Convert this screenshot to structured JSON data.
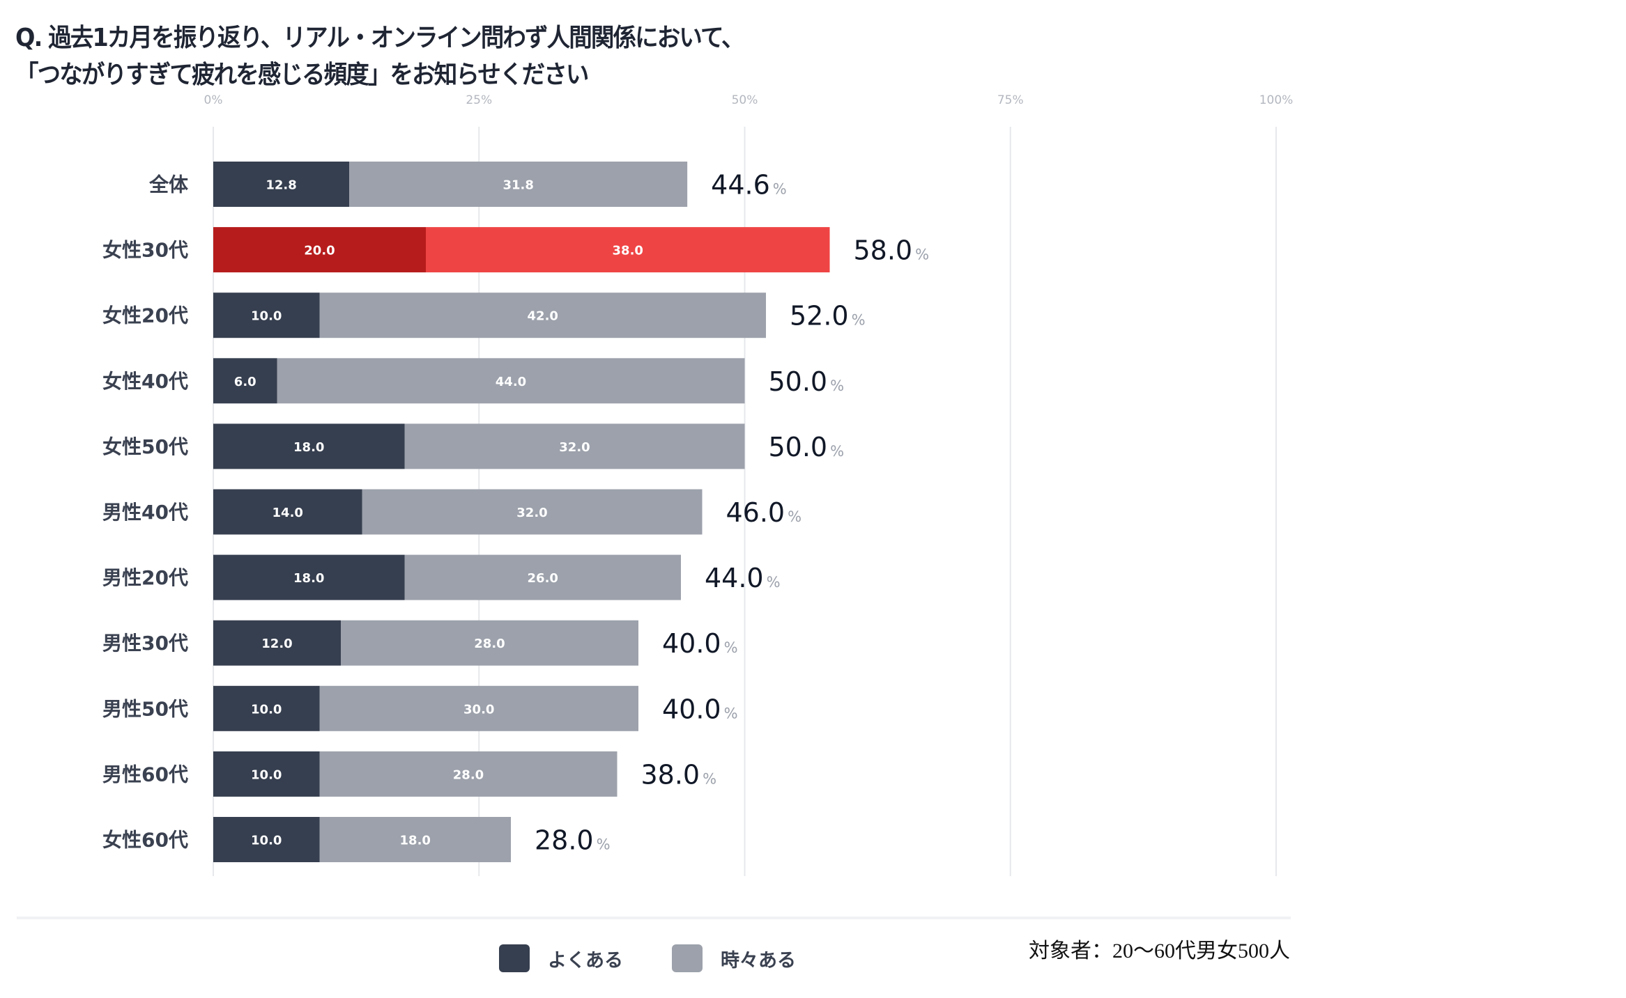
{
  "title": {
    "line1": "Q. 過去1カ月を振り返り、リアル・オンライン問わず人間関係において、",
    "line2": "「つながりすぎて疲れを感じる頻度」をお知らせください"
  },
  "colors": {
    "often": "#363f4f",
    "sometimes": "#9ca1ab",
    "highlight_often": "#b71c1c",
    "highlight_sometimes": "#ef4444",
    "highlight_text": "#d32f2f",
    "gridline": "#e6e8eb"
  },
  "legend": {
    "items": [
      {
        "label": "よくある",
        "color": "#363f4f"
      },
      {
        "label": "時々ある",
        "color": "#9ca1ab"
      }
    ]
  },
  "note": "対象者：20～60代男女500人",
  "chart_data": {
    "type": "bar",
    "orientation": "horizontal",
    "stacked": true,
    "title": "Q. 過去1カ月を振り返り、リアル・オンライン問わず人間関係において、「つながりすぎて疲れを感じる頻度」をお知らせください",
    "xlabel": "",
    "ylabel": "",
    "xlim": [
      0,
      100
    ],
    "x_ticks": [
      "0%",
      "25%",
      "50%",
      "75%",
      "100%"
    ],
    "x_tick_values": [
      0,
      25,
      50,
      75,
      100
    ],
    "grid": true,
    "legend_position": "bottom",
    "categories": [
      "全体",
      "女性30代",
      "女性20代",
      "女性40代",
      "女性50代",
      "男性40代",
      "男性20代",
      "男性30代",
      "男性50代",
      "男性60代",
      "女性60代"
    ],
    "highlight_category": "女性30代",
    "series": [
      {
        "name": "よくある",
        "values": [
          12.8,
          20.0,
          10.0,
          6.0,
          18.0,
          14.0,
          18.0,
          12.0,
          10.0,
          10.0,
          10.0
        ]
      },
      {
        "name": "時々ある",
        "values": [
          31.8,
          38.0,
          42.0,
          44.0,
          32.0,
          32.0,
          26.0,
          28.0,
          30.0,
          28.0,
          18.0
        ]
      }
    ],
    "totals": [
      44.6,
      58.0,
      52.0,
      50.0,
      50.0,
      46.0,
      44.0,
      40.0,
      40.0,
      38.0,
      28.0
    ],
    "total_suffix": "%"
  }
}
